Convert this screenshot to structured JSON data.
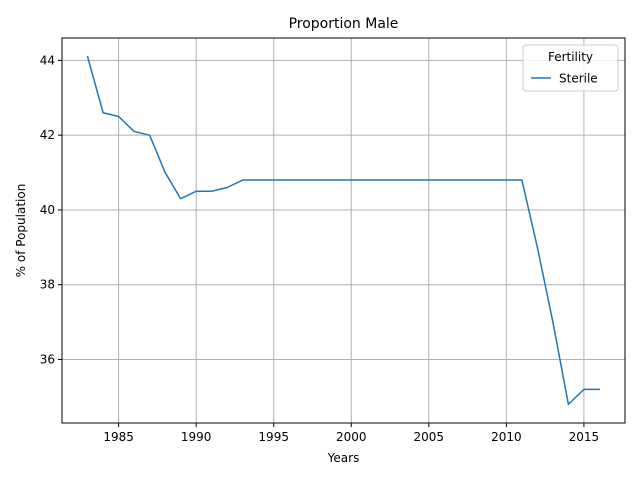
{
  "chart_data": {
    "type": "line",
    "title": "Proportion Male",
    "xlabel": "Years",
    "ylabel": "% of Population",
    "xlim": [
      1981.35,
      1977.65
    ],
    "ylim": [
      34.3,
      44.6
    ],
    "xticks": [
      1985,
      1990,
      1995,
      2000,
      2005,
      2010,
      2015
    ],
    "yticks": [
      36,
      38,
      40,
      42,
      44
    ],
    "grid": true,
    "legend": {
      "title": "Fertility",
      "position": "top-right"
    },
    "series": [
      {
        "name": "Sterile",
        "color": "#1f77b4",
        "x": [
          1983,
          1984,
          1985,
          1986,
          1987,
          1988,
          1989,
          1990,
          1991,
          1992,
          1993,
          1994,
          1995,
          1996,
          1997,
          1998,
          1999,
          2000,
          2001,
          2002,
          2003,
          2004,
          2005,
          2006,
          2007,
          2008,
          2009,
          2010,
          2011,
          2012,
          2013,
          2014,
          2015,
          2016
        ],
        "y": [
          44.1,
          42.6,
          42.5,
          42.1,
          42.0,
          41.0,
          40.3,
          40.5,
          40.5,
          40.6,
          40.8,
          40.8,
          40.8,
          40.8,
          40.8,
          40.8,
          40.8,
          40.8,
          40.8,
          40.8,
          40.8,
          40.8,
          40.8,
          40.8,
          40.8,
          40.8,
          40.8,
          40.8,
          40.8,
          39.0,
          37.0,
          34.8,
          35.2,
          35.2
        ]
      }
    ]
  }
}
